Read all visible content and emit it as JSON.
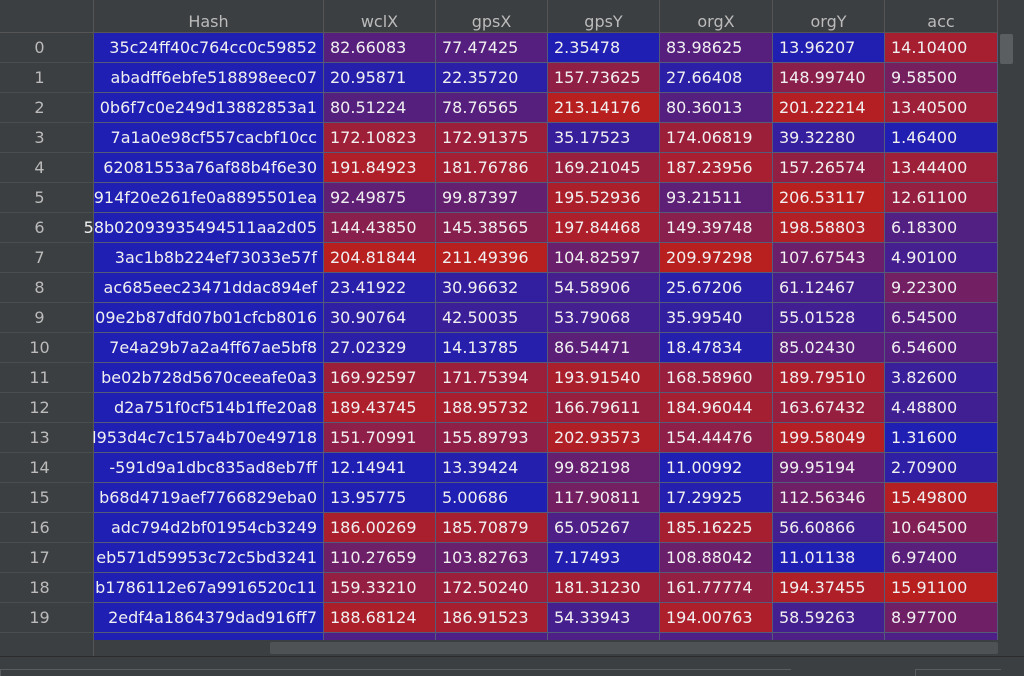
{
  "table": {
    "columns": [
      "Hash",
      "wclX",
      "gpsX",
      "gpsY",
      "orgX",
      "orgY",
      "acc"
    ],
    "rows": [
      {
        "index": "0",
        "hash": "35c24ff40c764cc0c59852",
        "wclX": "82.66083",
        "gpsX": "77.47425",
        "gpsY": "2.35478",
        "orgX": "83.98625",
        "orgY": "13.96207",
        "acc": "14.10400"
      },
      {
        "index": "1",
        "hash": "abadff6ebfe518898eec07",
        "wclX": "20.95871",
        "gpsX": "22.35720",
        "gpsY": "157.73625",
        "orgX": "27.66408",
        "orgY": "148.99740",
        "acc": "9.58500"
      },
      {
        "index": "2",
        "hash": "0b6f7c0e249d13882853a1",
        "wclX": "80.51224",
        "gpsX": "78.76565",
        "gpsY": "213.14176",
        "orgX": "80.36013",
        "orgY": "201.22214",
        "acc": "13.40500"
      },
      {
        "index": "3",
        "hash": "7a1a0e98cf557cacbf10cc",
        "wclX": "172.10823",
        "gpsX": "172.91375",
        "gpsY": "35.17523",
        "orgX": "174.06819",
        "orgY": "39.32280",
        "acc": "1.46400"
      },
      {
        "index": "4",
        "hash": "62081553a76af88b4f6e30",
        "wclX": "191.84923",
        "gpsX": "181.76786",
        "gpsY": "169.21045",
        "orgX": "187.23956",
        "orgY": "157.26574",
        "acc": "13.44400"
      },
      {
        "index": "5",
        "hash": "914f20e261fe0a8895501ea",
        "wclX": "92.49875",
        "gpsX": "99.87397",
        "gpsY": "195.52936",
        "orgX": "93.21511",
        "orgY": "206.53117",
        "acc": "12.61100"
      },
      {
        "index": "6",
        "hash": "58b02093935494511aa2d05",
        "wclX": "144.43850",
        "gpsX": "145.38565",
        "gpsY": "197.84468",
        "orgX": "149.39748",
        "orgY": "198.58803",
        "acc": "6.18300"
      },
      {
        "index": "7",
        "hash": "3ac1b8b224ef73033e57f",
        "wclX": "204.81844",
        "gpsX": "211.49396",
        "gpsY": "104.82597",
        "orgX": "209.97298",
        "orgY": "107.67543",
        "acc": "4.90100"
      },
      {
        "index": "8",
        "hash": "ac685eec23471ddac894ef",
        "wclX": "23.41922",
        "gpsX": "30.96632",
        "gpsY": "54.58906",
        "orgX": "25.67206",
        "orgY": "61.12467",
        "acc": "9.22300"
      },
      {
        "index": "9",
        "hash": "09e2b87dfd07b01cfcb8016",
        "wclX": "30.90764",
        "gpsX": "42.50035",
        "gpsY": "53.79068",
        "orgX": "35.99540",
        "orgY": "55.01528",
        "acc": "6.54500"
      },
      {
        "index": "10",
        "hash": "7e4a29b7a2a4ff67ae5bf8",
        "wclX": "27.02329",
        "gpsX": "14.13785",
        "gpsY": "86.54471",
        "orgX": "18.47834",
        "orgY": "85.02430",
        "acc": "6.54600"
      },
      {
        "index": "11",
        "hash": "be02b728d5670ceeafe0a3",
        "wclX": "169.92597",
        "gpsX": "171.75394",
        "gpsY": "193.91540",
        "orgX": "168.58960",
        "orgY": "189.79510",
        "acc": "3.82600"
      },
      {
        "index": "12",
        "hash": "d2a751f0cf514b1ffe20a8",
        "wclX": "189.43745",
        "gpsX": "188.95732",
        "gpsY": "166.79611",
        "orgX": "184.96044",
        "orgY": "163.67432",
        "acc": "4.48800"
      },
      {
        "index": "13",
        "hash": "l953d4c7c157a4b70e49718",
        "wclX": "151.70991",
        "gpsX": "155.89793",
        "gpsY": "202.93573",
        "orgX": "154.44476",
        "orgY": "199.58049",
        "acc": "1.31600"
      },
      {
        "index": "14",
        "hash": "-591d9a1dbc835ad8eb7ff",
        "wclX": "12.14941",
        "gpsX": "13.39424",
        "gpsY": "99.82198",
        "orgX": "11.00992",
        "orgY": "99.95194",
        "acc": "2.70900"
      },
      {
        "index": "15",
        "hash": "b68d4719aef7766829eba0",
        "wclX": "13.95775",
        "gpsX": "5.00686",
        "gpsY": "117.90811",
        "orgX": "17.29925",
        "orgY": "112.56346",
        "acc": "15.49800"
      },
      {
        "index": "16",
        "hash": "adc794d2bf01954cb3249",
        "wclX": "186.00269",
        "gpsX": "185.70879",
        "gpsY": "65.05267",
        "orgX": "185.16225",
        "orgY": "56.60866",
        "acc": "10.64500"
      },
      {
        "index": "17",
        "hash": "eb571d59953c72c5bd3241",
        "wclX": "110.27659",
        "gpsX": "103.82763",
        "gpsY": "7.17493",
        "orgX": "108.88042",
        "orgY": "11.01138",
        "acc": "6.97400"
      },
      {
        "index": "18",
        "hash": "b1786112e67a9916520c11",
        "wclX": "159.33210",
        "gpsX": "172.50240",
        "gpsY": "181.31230",
        "orgX": "161.77774",
        "orgY": "194.37455",
        "acc": "15.91100"
      },
      {
        "index": "19",
        "hash": "2edf4a1864379dad916ff7",
        "wclX": "188.68124",
        "gpsX": "186.91523",
        "gpsY": "54.33943",
        "orgX": "194.00763",
        "orgY": "58.59263",
        "acc": "8.97700"
      }
    ]
  },
  "colors": {
    "low": "#1f1fb3",
    "high": "#b81f1f",
    "background": "#3c3f41",
    "header_text": "#bbbbbb",
    "cell_text": "#f0f0f0"
  }
}
